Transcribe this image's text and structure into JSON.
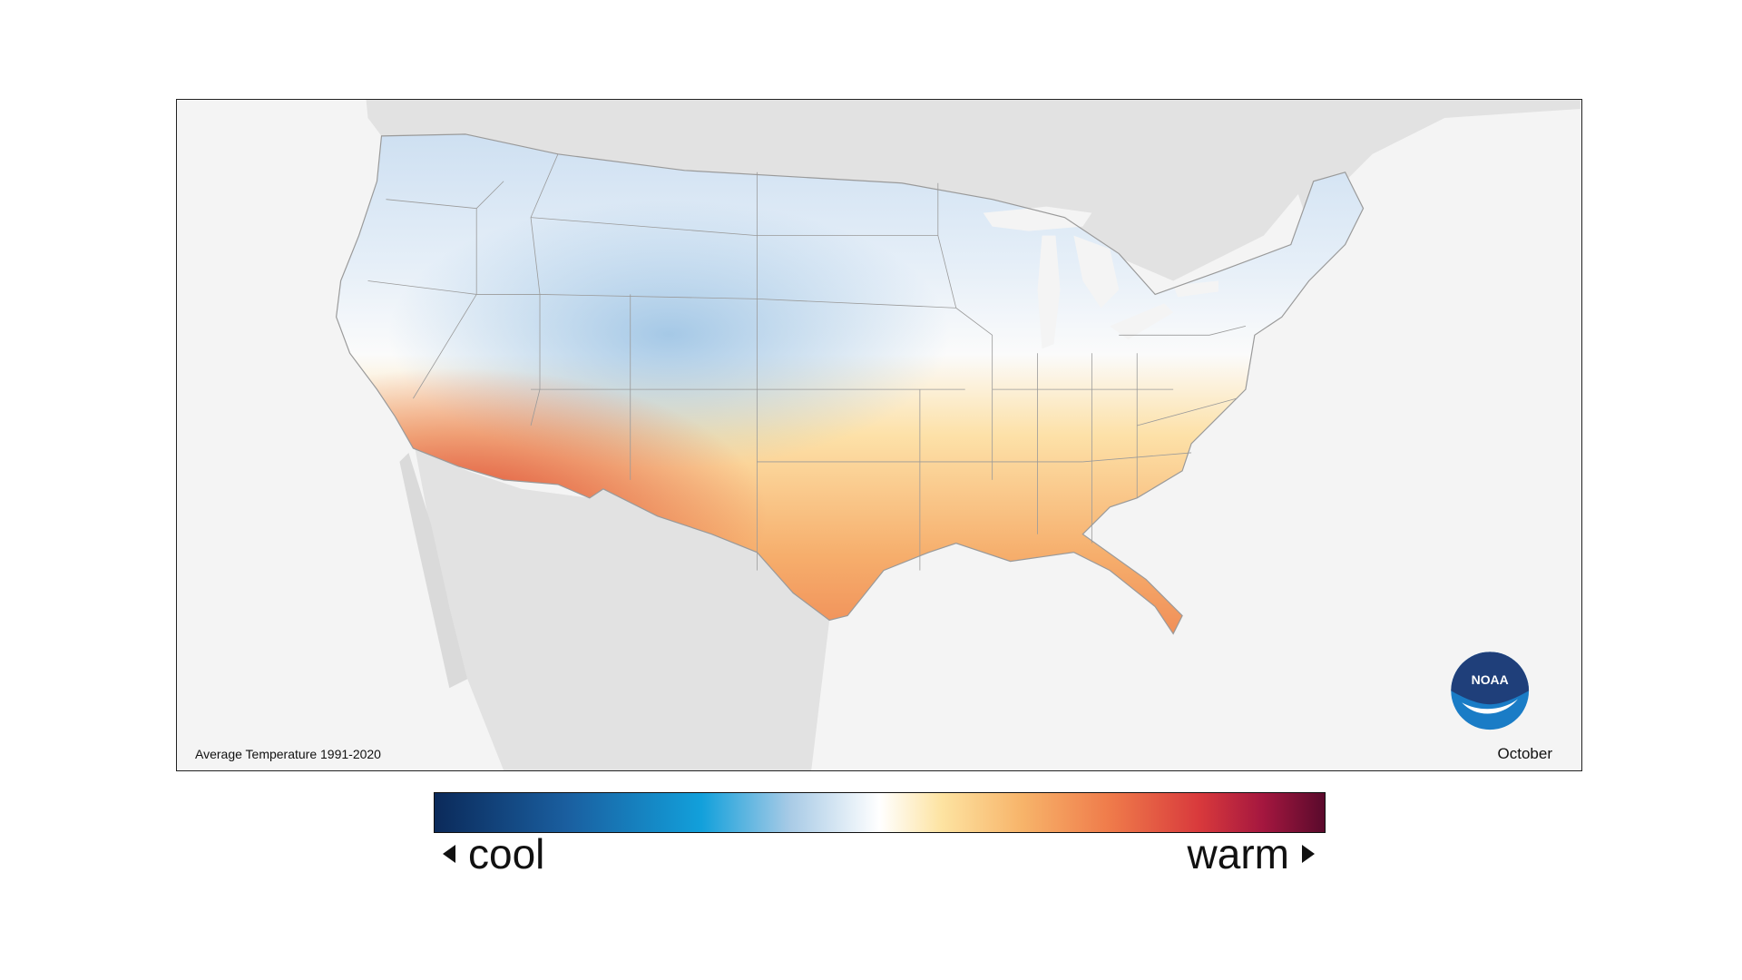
{
  "map": {
    "caption": "Average Temperature 1991-2020",
    "month": "October",
    "logo_text": "NOAA",
    "colors": {
      "land_outside": "#e2e2e2",
      "water": "#f4f4f4",
      "cold": "#bcd6ee",
      "neutral": "#f8f8f8",
      "warm": "#f6b878",
      "hot": "#e5563c"
    }
  },
  "legend": {
    "low_label": "cool",
    "high_label": "warm"
  }
}
